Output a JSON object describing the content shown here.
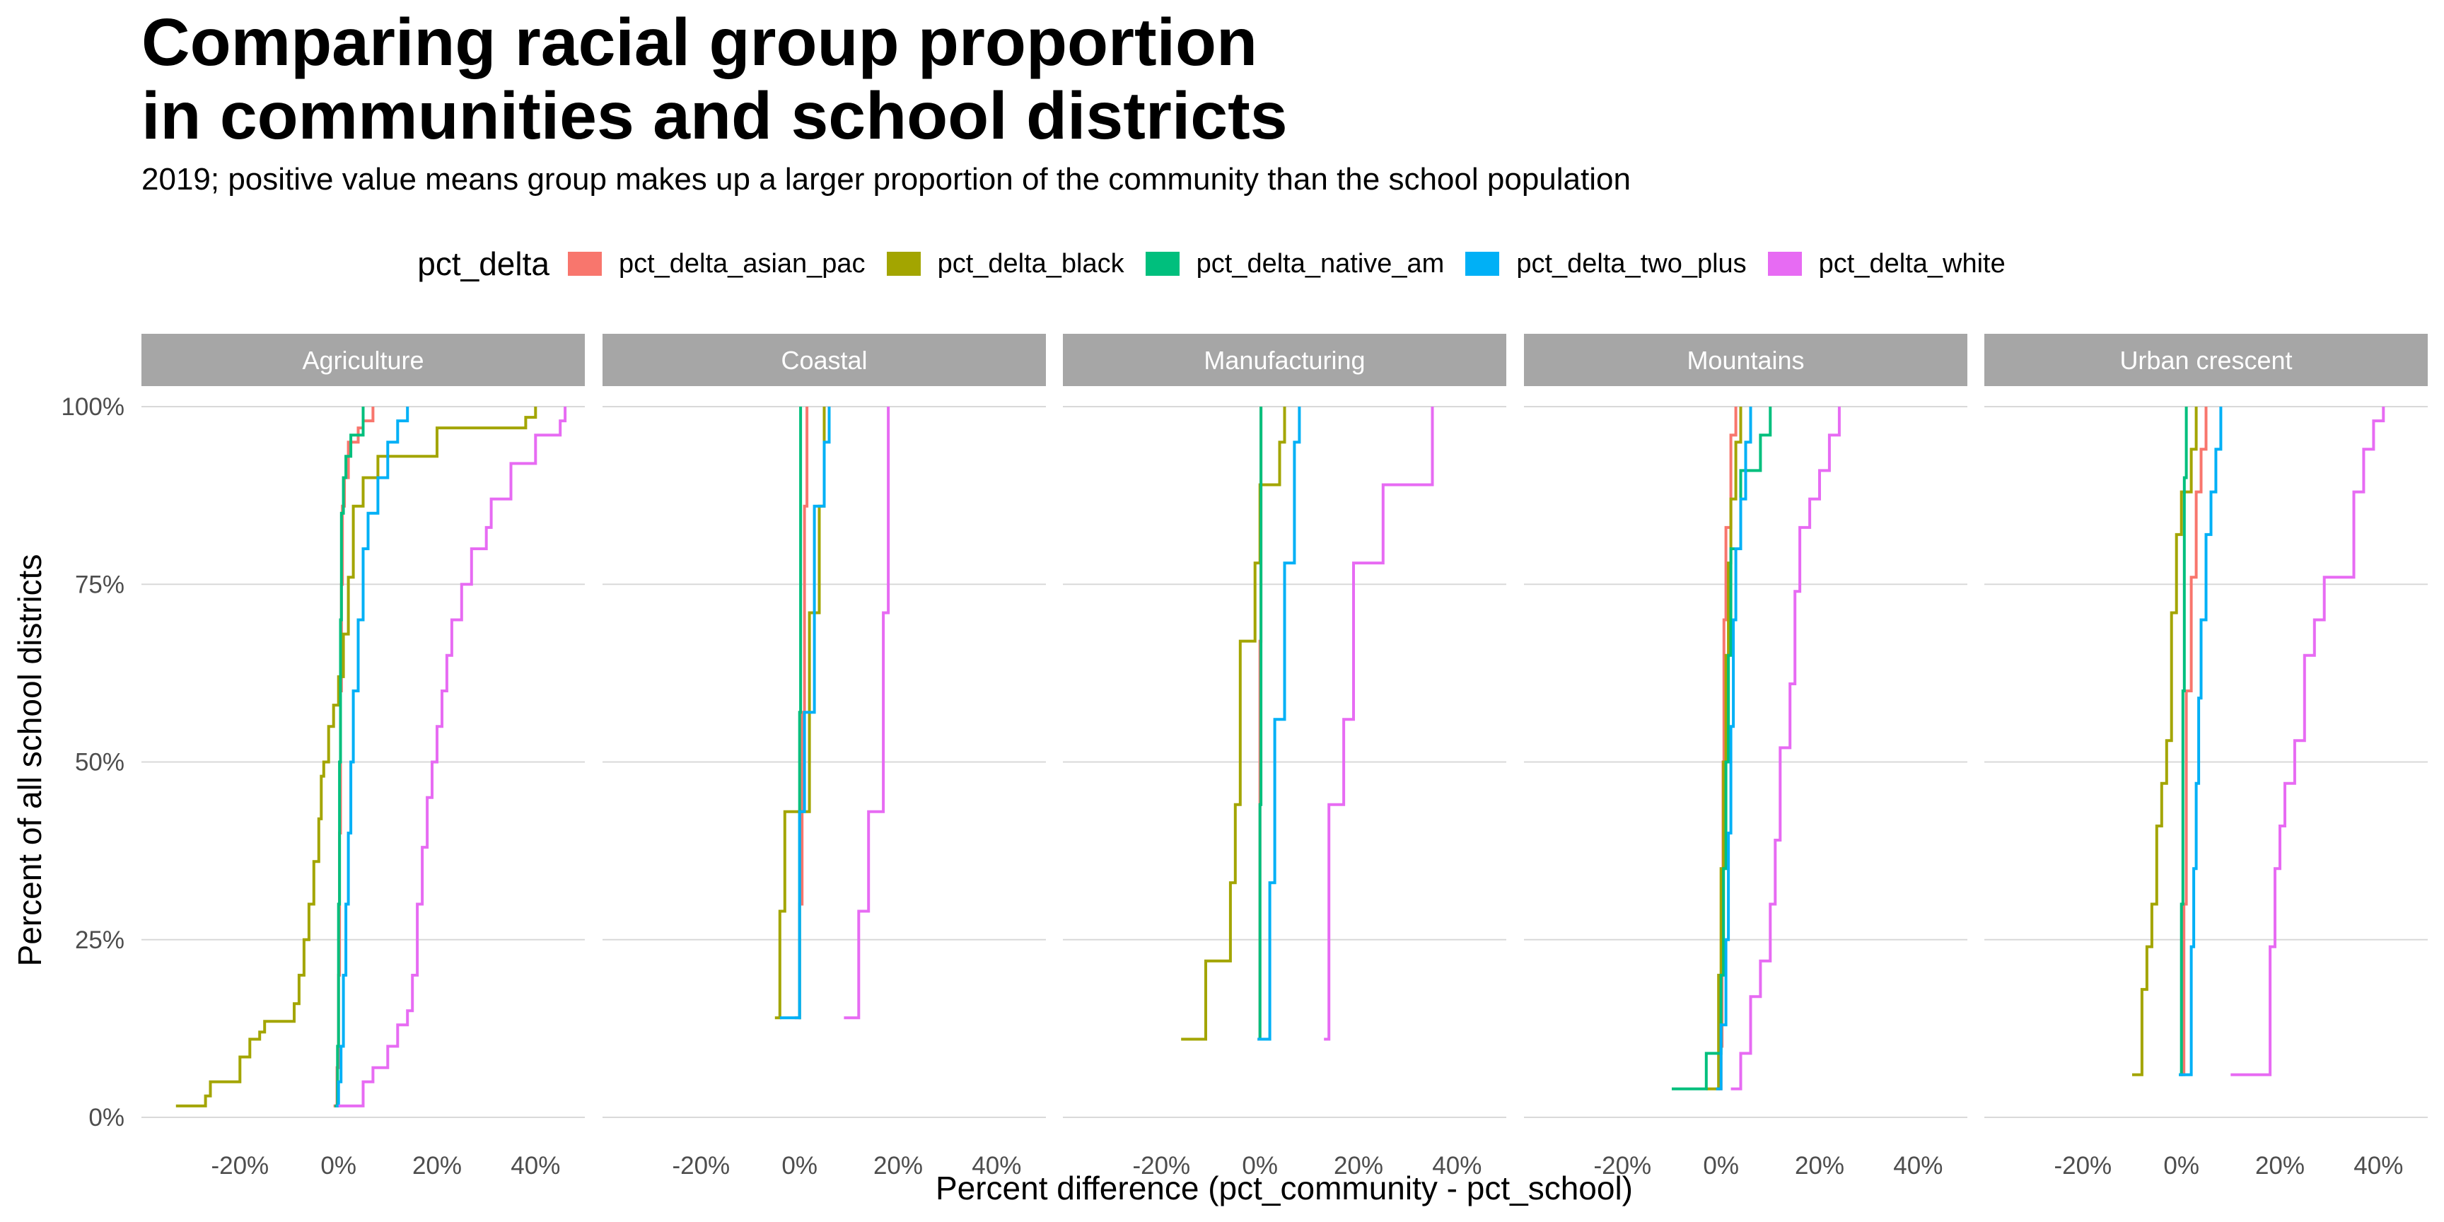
{
  "title_lines": [
    "Comparing racial group proportion",
    "in communities and school districts"
  ],
  "subtitle": "2019; positive value means group makes up a larger proportion of the community than the school population",
  "legend": {
    "title": "pct_delta",
    "items": [
      {
        "label": "pct_delta_asian_pac",
        "color": "#F8766D"
      },
      {
        "label": "pct_delta_black",
        "color": "#A3A500"
      },
      {
        "label": "pct_delta_native_am",
        "color": "#00BF7D"
      },
      {
        "label": "pct_delta_two_plus",
        "color": "#00B0F6"
      },
      {
        "label": "pct_delta_white",
        "color": "#E76BF3"
      }
    ]
  },
  "colors": {
    "strip_fill": "#A6A6A6",
    "strip_text": "#FFFFFF",
    "grid": "#D9D9D9",
    "tick_text": "#4D4D4D"
  },
  "chart_data": {
    "type": "line",
    "step": true,
    "facets": [
      "Agriculture",
      "Coastal",
      "Manufacturing",
      "Mountains",
      "Urban crescent"
    ],
    "xlabel": "Percent difference (pct_community - pct_school)",
    "ylabel": "Percent of all school districts",
    "xlim": [
      -0.4,
      0.5
    ],
    "ylim": [
      0,
      1
    ],
    "x_ticks": [
      -0.2,
      0,
      0.2,
      0.4
    ],
    "x_tick_labels": [
      "-20%",
      "0%",
      "20%",
      "40%"
    ],
    "y_ticks": [
      0,
      0.25,
      0.5,
      0.75,
      1
    ],
    "y_tick_labels": [
      "0%",
      "25%",
      "50%",
      "75%",
      "100%"
    ],
    "grid": "horizontal major",
    "panels": [
      {
        "facet": "Agriculture",
        "series": [
          {
            "name": "pct_delta_asian_pac",
            "x": [
              -0.01,
              -0.003,
              0.0,
              0.002,
              0.004,
              0.006,
              0.008,
              0.012,
              0.02,
              0.04,
              0.05,
              0.07
            ],
            "y": [
              0.016,
              0.07,
              0.2,
              0.4,
              0.6,
              0.75,
              0.86,
              0.9,
              0.95,
              0.97,
              0.98,
              1.0
            ]
          },
          {
            "name": "pct_delta_black",
            "x": [
              -0.33,
              -0.27,
              -0.26,
              -0.2,
              -0.18,
              -0.16,
              -0.15,
              -0.09,
              -0.08,
              -0.07,
              -0.06,
              -0.05,
              -0.04,
              -0.035,
              -0.03,
              -0.02,
              -0.01,
              0.0,
              0.01,
              0.02,
              0.03,
              0.05,
              0.08,
              0.2,
              0.38,
              0.4
            ],
            "y": [
              0.016,
              0.03,
              0.05,
              0.085,
              0.11,
              0.12,
              0.135,
              0.16,
              0.2,
              0.25,
              0.3,
              0.36,
              0.42,
              0.48,
              0.5,
              0.55,
              0.58,
              0.62,
              0.68,
              0.76,
              0.86,
              0.9,
              0.93,
              0.97,
              0.985,
              1.0
            ]
          },
          {
            "name": "pct_delta_native_am",
            "x": [
              -0.008,
              -0.002,
              0.0,
              0.002,
              0.004,
              0.006,
              0.01,
              0.015,
              0.025,
              0.05
            ],
            "y": [
              0.016,
              0.1,
              0.3,
              0.5,
              0.7,
              0.85,
              0.9,
              0.93,
              0.96,
              1.0
            ]
          },
          {
            "name": "pct_delta_two_plus",
            "x": [
              -0.005,
              0.0,
              0.005,
              0.01,
              0.015,
              0.02,
              0.025,
              0.03,
              0.04,
              0.05,
              0.06,
              0.08,
              0.1,
              0.12,
              0.14
            ],
            "y": [
              0.016,
              0.05,
              0.1,
              0.2,
              0.3,
              0.4,
              0.5,
              0.6,
              0.7,
              0.8,
              0.85,
              0.9,
              0.95,
              0.98,
              1.0
            ]
          },
          {
            "name": "pct_delta_white",
            "x": [
              0.0,
              0.05,
              0.07,
              0.1,
              0.12,
              0.14,
              0.15,
              0.16,
              0.17,
              0.18,
              0.19,
              0.2,
              0.21,
              0.22,
              0.23,
              0.25,
              0.27,
              0.3,
              0.31,
              0.35,
              0.4,
              0.45,
              0.46
            ],
            "y": [
              0.016,
              0.05,
              0.07,
              0.1,
              0.13,
              0.15,
              0.2,
              0.3,
              0.38,
              0.45,
              0.5,
              0.55,
              0.6,
              0.65,
              0.7,
              0.75,
              0.8,
              0.83,
              0.87,
              0.92,
              0.96,
              0.98,
              1.0
            ]
          }
        ]
      },
      {
        "facet": "Coastal",
        "series": [
          {
            "name": "pct_delta_asian_pac",
            "x": [
              -0.01,
              0.0,
              0.005,
              0.01,
              0.015
            ],
            "y": [
              0.14,
              0.3,
              0.57,
              0.86,
              1.0
            ]
          },
          {
            "name": "pct_delta_black",
            "x": [
              -0.05,
              -0.04,
              -0.03,
              0.02,
              0.04,
              0.05
            ],
            "y": [
              0.14,
              0.29,
              0.43,
              0.71,
              0.86,
              1.0
            ]
          },
          {
            "name": "pct_delta_native_am",
            "x": [
              -0.002,
              0.0,
              0.002
            ],
            "y": [
              0.14,
              0.57,
              1.0
            ]
          },
          {
            "name": "pct_delta_two_plus",
            "x": [
              -0.04,
              0.0,
              0.01,
              0.03,
              0.05,
              0.06
            ],
            "y": [
              0.14,
              0.43,
              0.57,
              0.86,
              0.95,
              1.0
            ]
          },
          {
            "name": "pct_delta_white",
            "x": [
              0.09,
              0.12,
              0.14,
              0.17,
              0.18
            ],
            "y": [
              0.14,
              0.29,
              0.43,
              0.71,
              1.0
            ]
          }
        ]
      },
      {
        "facet": "Manufacturing",
        "series": [
          {
            "name": "pct_delta_asian_pac",
            "x": [
              -0.005,
              0.0,
              0.002
            ],
            "y": [
              0.11,
              0.67,
              1.0
            ]
          },
          {
            "name": "pct_delta_black",
            "x": [
              -0.16,
              -0.11,
              -0.06,
              -0.05,
              -0.04,
              -0.01,
              0.0,
              0.04,
              0.05
            ],
            "y": [
              0.11,
              0.22,
              0.33,
              0.44,
              0.67,
              0.78,
              0.89,
              0.95,
              1.0
            ]
          },
          {
            "name": "pct_delta_native_am",
            "x": [
              -0.003,
              0.0,
              0.002
            ],
            "y": [
              0.11,
              0.44,
              1.0
            ]
          },
          {
            "name": "pct_delta_two_plus",
            "x": [
              -0.005,
              0.02,
              0.03,
              0.05,
              0.07,
              0.08
            ],
            "y": [
              0.11,
              0.33,
              0.56,
              0.78,
              0.95,
              1.0
            ]
          },
          {
            "name": "pct_delta_white",
            "x": [
              0.13,
              0.14,
              0.17,
              0.19,
              0.25,
              0.35
            ],
            "y": [
              0.11,
              0.44,
              0.56,
              0.78,
              0.89,
              1.0
            ]
          }
        ]
      },
      {
        "facet": "Mountains",
        "series": [
          {
            "name": "pct_delta_asian_pac",
            "x": [
              -0.005,
              0.0,
              0.002,
              0.004,
              0.006,
              0.01,
              0.02,
              0.03
            ],
            "y": [
              0.04,
              0.1,
              0.3,
              0.5,
              0.7,
              0.83,
              0.96,
              1.0
            ]
          },
          {
            "name": "pct_delta_black",
            "x": [
              -0.03,
              -0.005,
              0.0,
              0.005,
              0.01,
              0.015,
              0.02,
              0.03,
              0.04
            ],
            "y": [
              0.04,
              0.2,
              0.35,
              0.5,
              0.65,
              0.78,
              0.87,
              0.95,
              1.0
            ]
          },
          {
            "name": "pct_delta_native_am",
            "x": [
              -0.1,
              -0.03,
              0.0,
              0.005,
              0.01,
              0.015,
              0.02,
              0.04,
              0.08,
              0.1
            ],
            "y": [
              0.04,
              0.09,
              0.2,
              0.35,
              0.5,
              0.65,
              0.8,
              0.91,
              0.96,
              1.0
            ]
          },
          {
            "name": "pct_delta_two_plus",
            "x": [
              -0.01,
              0.0,
              0.01,
              0.015,
              0.02,
              0.025,
              0.03,
              0.04,
              0.05,
              0.06
            ],
            "y": [
              0.04,
              0.13,
              0.25,
              0.4,
              0.55,
              0.7,
              0.8,
              0.87,
              0.95,
              1.0
            ]
          },
          {
            "name": "pct_delta_white",
            "x": [
              0.02,
              0.04,
              0.06,
              0.08,
              0.1,
              0.11,
              0.12,
              0.14,
              0.15,
              0.16,
              0.18,
              0.2,
              0.22,
              0.24
            ],
            "y": [
              0.04,
              0.09,
              0.17,
              0.22,
              0.3,
              0.39,
              0.52,
              0.61,
              0.74,
              0.83,
              0.87,
              0.91,
              0.96,
              1.0
            ]
          }
        ]
      },
      {
        "facet": "Urban crescent",
        "series": [
          {
            "name": "pct_delta_asian_pac",
            "x": [
              0.0,
              0.005,
              0.01,
              0.02,
              0.03,
              0.04,
              0.05
            ],
            "y": [
              0.06,
              0.3,
              0.6,
              0.76,
              0.88,
              0.94,
              1.0
            ]
          },
          {
            "name": "pct_delta_black",
            "x": [
              -0.1,
              -0.08,
              -0.07,
              -0.06,
              -0.05,
              -0.04,
              -0.03,
              -0.02,
              -0.01,
              0.0,
              0.02,
              0.03
            ],
            "y": [
              0.06,
              0.18,
              0.24,
              0.3,
              0.41,
              0.47,
              0.53,
              0.71,
              0.82,
              0.88,
              0.94,
              1.0
            ]
          },
          {
            "name": "pct_delta_native_am",
            "x": [
              -0.005,
              0.0,
              0.003,
              0.006,
              0.01
            ],
            "y": [
              0.06,
              0.3,
              0.6,
              0.9,
              1.0
            ]
          },
          {
            "name": "pct_delta_two_plus",
            "x": [
              -0.005,
              0.02,
              0.025,
              0.03,
              0.035,
              0.04,
              0.05,
              0.06,
              0.07,
              0.08
            ],
            "y": [
              0.06,
              0.24,
              0.35,
              0.47,
              0.59,
              0.7,
              0.82,
              0.88,
              0.94,
              1.0
            ]
          },
          {
            "name": "pct_delta_white",
            "x": [
              0.1,
              0.18,
              0.19,
              0.2,
              0.21,
              0.23,
              0.25,
              0.27,
              0.29,
              0.35,
              0.37,
              0.39,
              0.41
            ],
            "y": [
              0.06,
              0.24,
              0.35,
              0.41,
              0.47,
              0.53,
              0.65,
              0.7,
              0.76,
              0.88,
              0.94,
              0.98,
              1.0
            ]
          }
        ]
      }
    ]
  }
}
